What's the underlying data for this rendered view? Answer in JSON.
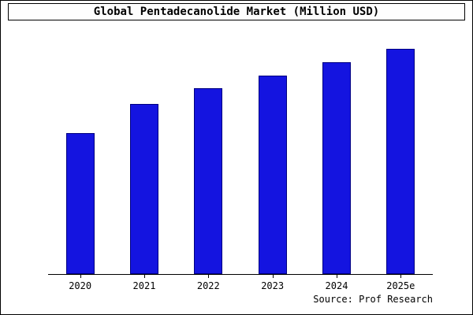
{
  "chart_data": {
    "type": "bar",
    "title": "Global Pentadecanolide Market (Million USD)",
    "categories": [
      "2020",
      "2021",
      "2022",
      "2023",
      "2024",
      "2025e"
    ],
    "values": [
      187,
      225,
      246,
      263,
      281,
      299
    ],
    "xlabel": "",
    "ylabel": "",
    "ylim": [
      0,
      310
    ],
    "grid": false,
    "legend": false,
    "bar_color": "#1414e0",
    "bar_border_color": "#000080",
    "axis_color": "#000000"
  },
  "source": "Source: Prof Research"
}
